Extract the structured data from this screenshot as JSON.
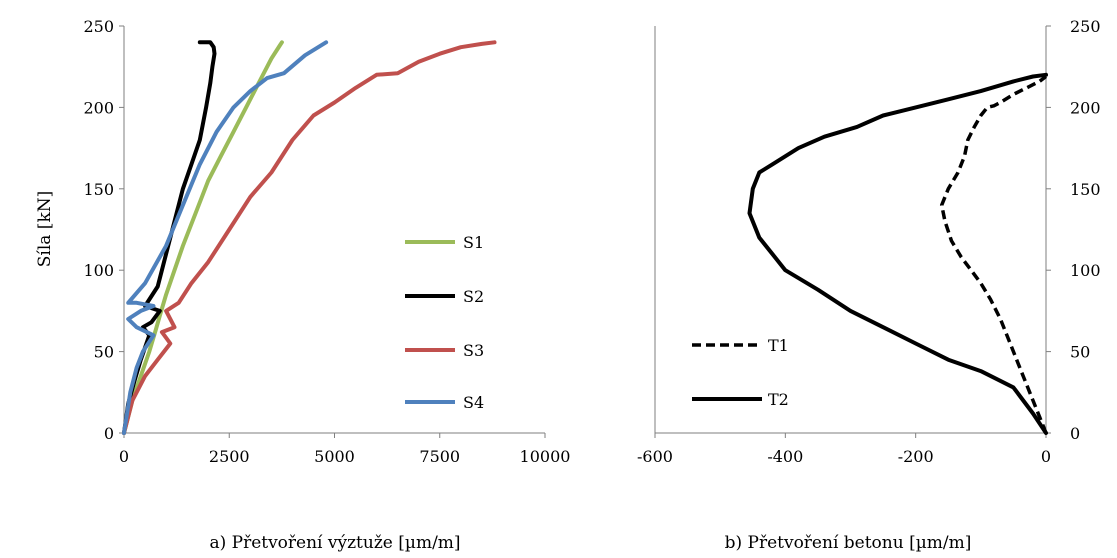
{
  "chart_data": [
    {
      "type": "line",
      "caption": "a) Přetvoření výztuže [µm/m]",
      "ylabel": "Síla [kN]",
      "xlim": [
        0,
        10000
      ],
      "ylim": [
        0,
        250
      ],
      "xticks": [
        "0",
        "2500",
        "5000",
        "7500",
        "10000"
      ],
      "yticks": [
        "0",
        "50",
        "100",
        "150",
        "200",
        "250"
      ],
      "grid": false,
      "legend_position": "lower-right",
      "series": [
        {
          "name": "S1",
          "color": "#9bbb59",
          "style": "solid",
          "x": [
            0,
            200,
            400,
            600,
            750,
            850,
            1000,
            1200,
            1400,
            1700,
            2000,
            2300,
            2600,
            2900,
            3200,
            3500,
            3700,
            3750
          ],
          "y": [
            0,
            20,
            35,
            50,
            63,
            72,
            85,
            100,
            115,
            135,
            155,
            170,
            185,
            200,
            215,
            230,
            238,
            240
          ]
        },
        {
          "name": "S2",
          "color": "#000000",
          "style": "solid",
          "x": [
            0,
            100,
            250,
            400,
            600,
            450,
            650,
            850,
            500,
            800,
            1000,
            1200,
            1400,
            1600,
            1800,
            1950,
            2050,
            2100,
            2150,
            2130,
            2050,
            1800
          ],
          "y": [
            0,
            18,
            32,
            45,
            60,
            65,
            68,
            75,
            78,
            90,
            110,
            130,
            150,
            165,
            180,
            200,
            215,
            225,
            233,
            237,
            240,
            240
          ]
        },
        {
          "name": "S3",
          "color": "#c0504d",
          "style": "solid",
          "x": [
            0,
            200,
            500,
            800,
            1100,
            900,
            1200,
            1000,
            1300,
            1600,
            2000,
            2500,
            3000,
            3500,
            4000,
            4500,
            5000,
            5500,
            6000,
            6500,
            7000,
            7500,
            8000,
            8500,
            8800
          ],
          "y": [
            0,
            20,
            35,
            45,
            55,
            62,
            65,
            75,
            80,
            92,
            105,
            125,
            145,
            160,
            180,
            195,
            203,
            212,
            220,
            221,
            228,
            233,
            237,
            239,
            240
          ]
        },
        {
          "name": "S4",
          "color": "#4f81bd",
          "style": "solid",
          "x": [
            0,
            150,
            300,
            450,
            700,
            300,
            100,
            400,
            700,
            300,
            100,
            500,
            1000,
            1400,
            1800,
            2200,
            2600,
            3000,
            3400,
            3800,
            4300,
            4800
          ],
          "y": [
            0,
            25,
            40,
            50,
            60,
            65,
            70,
            75,
            78,
            80,
            80,
            92,
            115,
            140,
            165,
            185,
            200,
            210,
            218,
            221,
            232,
            240
          ]
        }
      ]
    },
    {
      "type": "line",
      "caption": "b) Přetvoření betonu [µm/m]",
      "ylabel": "",
      "xlim": [
        -600,
        0
      ],
      "ylim": [
        0,
        250
      ],
      "xticks": [
        "-600",
        "-400",
        "-200",
        "0"
      ],
      "yticks": [
        "0",
        "50",
        "100",
        "150",
        "200",
        "250"
      ],
      "yaxis_side": "right",
      "grid": false,
      "legend_position": "lower-left",
      "series": [
        {
          "name": "T1",
          "color": "#000000",
          "style": "dashed",
          "x": [
            0,
            -10,
            -25,
            -40,
            -55,
            -70,
            -85,
            -100,
            -115,
            -130,
            -145,
            -155,
            -160,
            -150,
            -135,
            -125,
            -120,
            -110,
            -100,
            -90,
            -80,
            -70,
            -50,
            -30,
            -10,
            0
          ],
          "y": [
            0,
            10,
            25,
            40,
            55,
            70,
            82,
            92,
            100,
            108,
            118,
            130,
            140,
            150,
            160,
            170,
            180,
            188,
            195,
            200,
            201,
            203,
            208,
            212,
            216,
            219
          ]
        },
        {
          "name": "T2",
          "color": "#000000",
          "style": "solid",
          "x": [
            0,
            -20,
            -50,
            -100,
            -150,
            -200,
            -250,
            -300,
            -350,
            -400,
            -420,
            -440,
            -455,
            -450,
            -440,
            -420,
            -380,
            -340,
            -290,
            -250,
            -200,
            -150,
            -100,
            -50,
            -20,
            0
          ],
          "y": [
            0,
            12,
            28,
            38,
            45,
            55,
            65,
            75,
            88,
            100,
            110,
            120,
            135,
            150,
            160,
            165,
            175,
            182,
            188,
            195,
            200,
            205,
            210,
            216,
            219,
            220
          ]
        }
      ]
    }
  ]
}
